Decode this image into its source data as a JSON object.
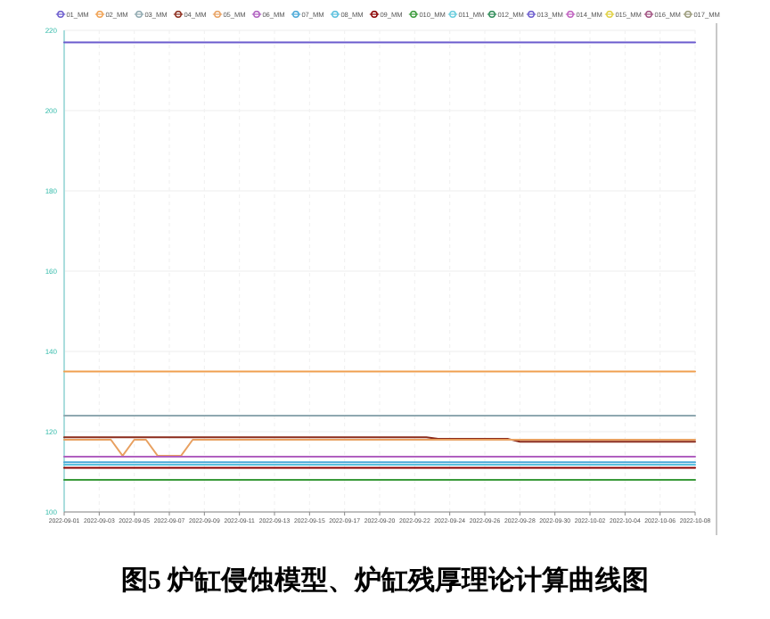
{
  "chart_data": {
    "type": "line",
    "categories": [
      "2022-09-01",
      null,
      null,
      "2022-09-03",
      null,
      null,
      "2022-09-05",
      null,
      null,
      "2022-09-07",
      null,
      null,
      "2022-09-09",
      null,
      null,
      "2022-09-11",
      null,
      null,
      "2022-09-13",
      null,
      null,
      "2022-09-15",
      null,
      null,
      "2022-09-17",
      null,
      null,
      "2022-09-20",
      null,
      null,
      "2022-09-22",
      null,
      null,
      "2022-09-24",
      null,
      null,
      "2022-09-26",
      null,
      null,
      "2022-09-28",
      null,
      null,
      "2022-09-30",
      null,
      null,
      "2022-10-02",
      null,
      null,
      "2022-10-04",
      null,
      null,
      "2022-10-06",
      null,
      null,
      "2022-10-08"
    ],
    "ylim": [
      100,
      220
    ],
    "yticks": [
      100,
      120,
      140,
      160,
      180,
      200,
      220
    ],
    "grid": true,
    "legend": "top",
    "marker": "none",
    "line_style": "solid",
    "annotations": [
      "图5  炉缸侵蚀模型、炉缸残厚理论计算曲线图"
    ],
    "series": [
      {
        "name": "01_MM",
        "color": "#6a5acd",
        "values": [
          217,
          217,
          217,
          217,
          217,
          217,
          217,
          217,
          217,
          217,
          217,
          217,
          217,
          217,
          217,
          217,
          217,
          217,
          217,
          217,
          217,
          217,
          217,
          217,
          217,
          217,
          217,
          217,
          217,
          217,
          217,
          217,
          217,
          217,
          217,
          217,
          217,
          217,
          217,
          217,
          217,
          217,
          217,
          217,
          217,
          217,
          217,
          217,
          217,
          217,
          217,
          217,
          217,
          217,
          217
        ]
      },
      {
        "name": "02_MM",
        "color": "#f0a050",
        "values": [
          135,
          135,
          135,
          135,
          135,
          135,
          135,
          135,
          135,
          135,
          135,
          135,
          135,
          135,
          135,
          135,
          135,
          135,
          135,
          135,
          135,
          135,
          135,
          135,
          135,
          135,
          135,
          135,
          135,
          135,
          135,
          135,
          135,
          135,
          135,
          135,
          135,
          135,
          135,
          135,
          135,
          135,
          135,
          135,
          135,
          135,
          135,
          135,
          135,
          135,
          135,
          135,
          135,
          135,
          135
        ]
      },
      {
        "name": "03_MM",
        "color": "#8fa8b0",
        "values": [
          124,
          124,
          124,
          124,
          124,
          124,
          124,
          124,
          124,
          124,
          124,
          124,
          124,
          124,
          124,
          124,
          124,
          124,
          124,
          124,
          124,
          124,
          124,
          124,
          124,
          124,
          124,
          124,
          124,
          124,
          124,
          124,
          124,
          124,
          124,
          124,
          124,
          124,
          124,
          124,
          124,
          124,
          124,
          124,
          124,
          124,
          124,
          124,
          124,
          124,
          124,
          124,
          124,
          124,
          124
        ]
      },
      {
        "name": "04_MM",
        "color": "#8b2a1a",
        "values": [
          118.6,
          118.6,
          118.6,
          118.6,
          118.6,
          118.6,
          118.6,
          118.6,
          118.6,
          118.6,
          118.6,
          118.6,
          118.6,
          118.6,
          118.6,
          118.6,
          118.6,
          118.6,
          118.6,
          118.6,
          118.6,
          118.6,
          118.6,
          118.6,
          118.6,
          118.6,
          118.6,
          118.6,
          118.6,
          118.6,
          118.6,
          118.6,
          118.2,
          118.2,
          118.2,
          118.2,
          118.2,
          118.2,
          118.2,
          117.5,
          117.5,
          117.5,
          117.5,
          117.5,
          117.5,
          117.5,
          117.5,
          117.5,
          117.5,
          117.5,
          117.5,
          117.5,
          117.5,
          117.5,
          117.5
        ]
      },
      {
        "name": "05_MM",
        "color": "#e8a060",
        "values": [
          118,
          118,
          118,
          118,
          118,
          114,
          118,
          118,
          114,
          114,
          114,
          118,
          118,
          118,
          118,
          118,
          118,
          118,
          118,
          118,
          118,
          118,
          118,
          118,
          118,
          118,
          118,
          118,
          118,
          118,
          118,
          118,
          118,
          118,
          118,
          118,
          118,
          118,
          118,
          118,
          118,
          118,
          118,
          118,
          118,
          118,
          118,
          118,
          118,
          118,
          118,
          118,
          118,
          118,
          118
        ]
      },
      {
        "name": "06_MM",
        "color": "#b060c0",
        "values": [
          113.8,
          113.8,
          113.8,
          113.8,
          113.8,
          113.8,
          113.8,
          113.8,
          113.8,
          113.8,
          113.8,
          113.8,
          113.8,
          113.8,
          113.8,
          113.8,
          113.8,
          113.8,
          113.8,
          113.8,
          113.8,
          113.8,
          113.8,
          113.8,
          113.8,
          113.8,
          113.8,
          113.8,
          113.8,
          113.8,
          113.8,
          113.8,
          113.8,
          113.8,
          113.8,
          113.8,
          113.8,
          113.8,
          113.8,
          113.8,
          113.8,
          113.8,
          113.8,
          113.8,
          113.8,
          113.8,
          113.8,
          113.8,
          113.8,
          113.8,
          113.8,
          113.8,
          113.8,
          113.8,
          113.8
        ]
      },
      {
        "name": "07_MM",
        "color": "#4aa8d8",
        "values": [
          112.4,
          112.4,
          112.4,
          112.4,
          112.4,
          112.4,
          112.4,
          112.4,
          112.4,
          112.4,
          112.4,
          112.4,
          112.4,
          112.4,
          112.4,
          112.4,
          112.4,
          112.4,
          112.4,
          112.4,
          112.4,
          112.4,
          112.4,
          112.4,
          112.4,
          112.4,
          112.4,
          112.4,
          112.4,
          112.4,
          112.4,
          112.4,
          112.4,
          112.4,
          112.4,
          112.4,
          112.4,
          112.4,
          112.4,
          112.4,
          112.4,
          112.4,
          112.4,
          112.4,
          112.4,
          112.4,
          112.4,
          112.4,
          112.4,
          112.4,
          112.4,
          112.4,
          112.4,
          112.4,
          112.4
        ]
      },
      {
        "name": "08_MM",
        "color": "#5bc0de",
        "values": [
          111.8,
          111.8,
          111.8,
          111.8,
          111.8,
          111.8,
          111.8,
          111.8,
          111.8,
          111.8,
          111.8,
          111.8,
          111.8,
          111.8,
          111.8,
          111.8,
          111.8,
          111.8,
          111.8,
          111.8,
          111.8,
          111.8,
          111.8,
          111.8,
          111.8,
          111.8,
          111.8,
          111.8,
          111.8,
          111.8,
          111.8,
          111.8,
          111.8,
          111.8,
          111.8,
          111.8,
          111.8,
          111.8,
          111.8,
          111.8,
          111.8,
          111.8,
          111.8,
          111.8,
          111.8,
          111.8,
          111.8,
          111.8,
          111.8,
          111.8,
          111.8,
          111.8,
          111.8,
          111.8,
          111.8
        ]
      },
      {
        "name": "09_MM",
        "color": "#8b0000",
        "values": [
          111,
          111,
          111,
          111,
          111,
          111,
          111,
          111,
          111,
          111,
          111,
          111,
          111,
          111,
          111,
          111,
          111,
          111,
          111,
          111,
          111,
          111,
          111,
          111,
          111,
          111,
          111,
          111,
          111,
          111,
          111,
          111,
          111,
          111,
          111,
          111,
          111,
          111,
          111,
          111,
          111,
          111,
          111,
          111,
          111,
          111,
          111,
          111,
          111,
          111,
          111,
          111,
          111,
          111,
          111
        ]
      },
      {
        "name": "010_MM",
        "color": "#3a9a3a",
        "values": [
          108,
          108,
          108,
          108,
          108,
          108,
          108,
          108,
          108,
          108,
          108,
          108,
          108,
          108,
          108,
          108,
          108,
          108,
          108,
          108,
          108,
          108,
          108,
          108,
          108,
          108,
          108,
          108,
          108,
          108,
          108,
          108,
          108,
          108,
          108,
          108,
          108,
          108,
          108,
          108,
          108,
          108,
          108,
          108,
          108,
          108,
          108,
          108,
          108,
          108,
          108,
          108,
          108,
          108,
          108
        ]
      },
      {
        "name": "011_MM",
        "color": "#66ccdd",
        "values": [
          null,
          null,
          null,
          null,
          null,
          null,
          null,
          null,
          null,
          null,
          null,
          null,
          null,
          null,
          null,
          null,
          null,
          null,
          null,
          null,
          null,
          null,
          null,
          null,
          null,
          null,
          null,
          null,
          null,
          null,
          null,
          null,
          null,
          null,
          null,
          null,
          null,
          null,
          null,
          null,
          null,
          null,
          null,
          null,
          null,
          null,
          null,
          null,
          null,
          null,
          null,
          null,
          null,
          null,
          null
        ]
      },
      {
        "name": "012_MM",
        "color": "#2e8b57",
        "values": [
          null,
          null,
          null,
          null,
          null,
          null,
          null,
          null,
          null,
          null,
          null,
          null,
          null,
          null,
          null,
          null,
          null,
          null,
          null,
          null,
          null,
          null,
          null,
          null,
          null,
          null,
          null,
          null,
          null,
          null,
          null,
          null,
          null,
          null,
          null,
          null,
          null,
          null,
          null,
          null,
          null,
          null,
          null,
          null,
          null,
          null,
          null,
          null,
          null,
          null,
          null,
          null,
          null,
          null,
          null
        ]
      },
      {
        "name": "013_MM",
        "color": "#6a5acd",
        "values": [
          null,
          null,
          null,
          null,
          null,
          null,
          null,
          null,
          null,
          null,
          null,
          null,
          null,
          null,
          null,
          null,
          null,
          null,
          null,
          null,
          null,
          null,
          null,
          null,
          null,
          null,
          null,
          null,
          null,
          null,
          null,
          null,
          null,
          null,
          null,
          null,
          null,
          null,
          null,
          null,
          null,
          null,
          null,
          null,
          null,
          null,
          null,
          null,
          null,
          null,
          null,
          null,
          null,
          null,
          null
        ]
      },
      {
        "name": "014_MM",
        "color": "#c060c0",
        "values": [
          null,
          null,
          null,
          null,
          null,
          null,
          null,
          null,
          null,
          null,
          null,
          null,
          null,
          null,
          null,
          null,
          null,
          null,
          null,
          null,
          null,
          null,
          null,
          null,
          null,
          null,
          null,
          null,
          null,
          null,
          null,
          null,
          null,
          null,
          null,
          null,
          null,
          null,
          null,
          null,
          null,
          null,
          null,
          null,
          null,
          null,
          null,
          null,
          null,
          null,
          null,
          null,
          null,
          null,
          null
        ]
      },
      {
        "name": "015_MM",
        "color": "#e0d040",
        "values": [
          null,
          null,
          null,
          null,
          null,
          null,
          null,
          null,
          null,
          null,
          null,
          null,
          null,
          null,
          null,
          null,
          null,
          null,
          null,
          null,
          null,
          null,
          null,
          null,
          null,
          null,
          null,
          null,
          null,
          null,
          null,
          null,
          null,
          null,
          null,
          null,
          null,
          null,
          null,
          null,
          null,
          null,
          null,
          null,
          null,
          null,
          null,
          null,
          null,
          null,
          null,
          null,
          null,
          null,
          null
        ]
      },
      {
        "name": "016_MM",
        "color": "#a05080",
        "values": [
          null,
          null,
          null,
          null,
          null,
          null,
          null,
          null,
          null,
          null,
          null,
          null,
          null,
          null,
          null,
          null,
          null,
          null,
          null,
          null,
          null,
          null,
          null,
          null,
          null,
          null,
          null,
          null,
          null,
          null,
          null,
          null,
          null,
          null,
          null,
          null,
          null,
          null,
          null,
          null,
          null,
          null,
          null,
          null,
          null,
          null,
          null,
          null,
          null,
          null,
          null,
          null,
          null,
          null,
          null
        ]
      },
      {
        "name": "017_MM",
        "color": "#9a9a7a",
        "values": [
          null,
          null,
          null,
          null,
          null,
          null,
          null,
          null,
          null,
          null,
          null,
          null,
          null,
          null,
          null,
          null,
          null,
          null,
          null,
          null,
          null,
          null,
          null,
          null,
          null,
          null,
          null,
          null,
          null,
          null,
          null,
          null,
          null,
          null,
          null,
          null,
          null,
          null,
          null,
          null,
          null,
          null,
          null,
          null,
          null,
          null,
          null,
          null,
          null,
          null,
          null,
          null,
          null,
          null,
          null
        ]
      }
    ]
  }
}
